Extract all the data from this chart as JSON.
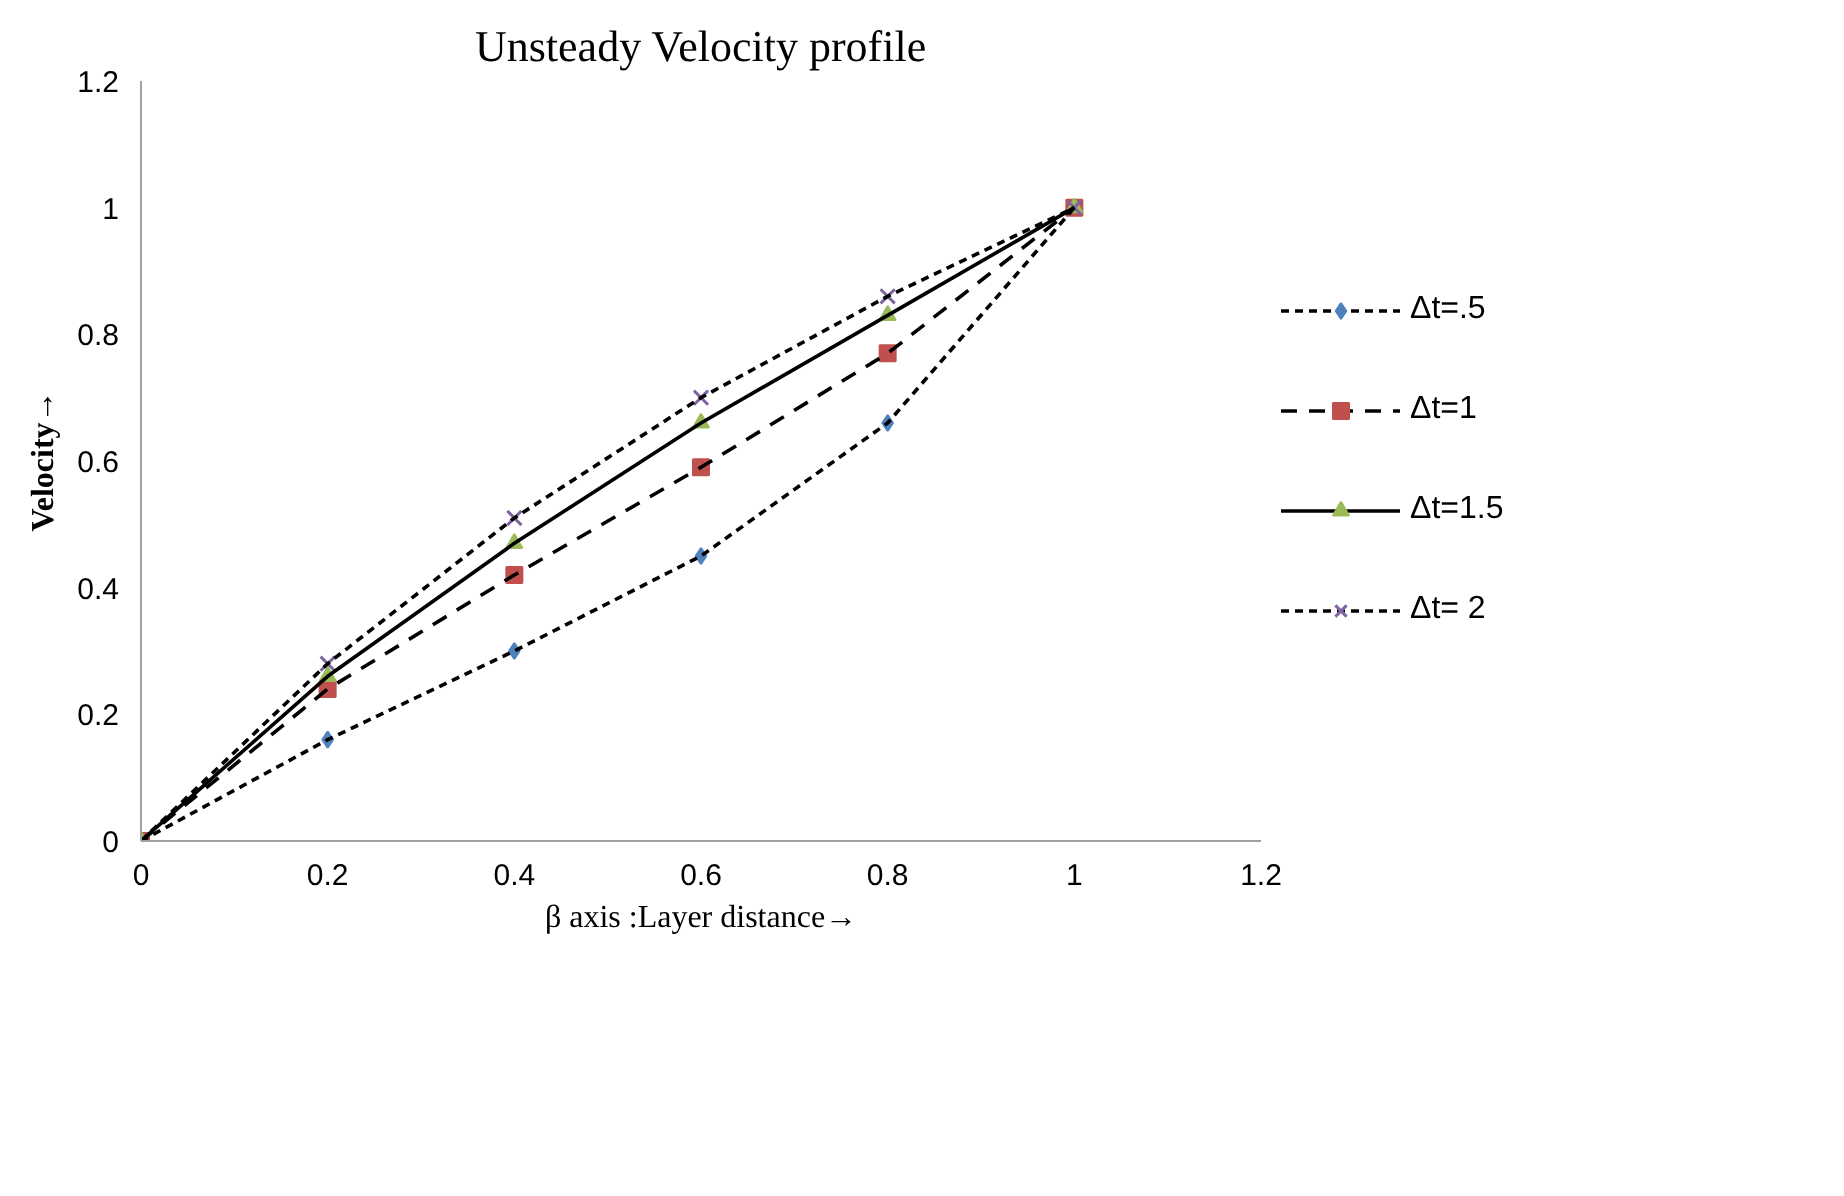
{
  "chart_data": {
    "type": "line",
    "title": "Unsteady Velocity profile",
    "xlabel": "β axis :Layer distance→",
    "ylabel": "Velocity→",
    "x": [
      0,
      0.2,
      0.4,
      0.6,
      0.8,
      1
    ],
    "series": [
      {
        "name": "Δt=.5",
        "color": "#000000",
        "colors": [
          "#4f81bd",
          "#4f81bd",
          "#4f81bd",
          "#4f81bd",
          "#4f81bd",
          "#4f81bd"
        ],
        "values": [
          0,
          0.16,
          0.3,
          0.45,
          0.66,
          1
        ],
        "marker": "diamond",
        "line_style": "dotted"
      },
      {
        "name": "Δt=1",
        "color": "#000000",
        "colors": [
          "#c0504d",
          "#c0504d",
          "#c0504d",
          "#c0504d",
          "#c0504d",
          "#c0504d"
        ],
        "values": [
          0,
          0.24,
          0.42,
          0.59,
          0.77,
          1
        ],
        "marker": "square",
        "line_style": "dashed"
      },
      {
        "name": "Δt=1.5",
        "color": "#000000",
        "colors": [
          "#9bbb59",
          "#9bbb59",
          "#9bbb59",
          "#9bbb59",
          "#9bbb59",
          "#9bbb59"
        ],
        "values": [
          0,
          0.26,
          0.47,
          0.66,
          0.83,
          1
        ],
        "marker": "triangle",
        "line_style": "solid"
      },
      {
        "name": "Δt= 2",
        "color": "#000000",
        "colors": [
          "#8064a2",
          "#8064a2",
          "#8064a2",
          "#8064a2",
          "#8064a2",
          "#8064a2"
        ],
        "values": [
          0,
          0.28,
          0.51,
          0.7,
          0.86,
          1
        ],
        "marker": "cross",
        "line_style": "dotted"
      }
    ],
    "xlim": [
      0,
      1.2
    ],
    "ylim": [
      0,
      1.2
    ],
    "xticks": [
      0,
      0.2,
      0.4,
      0.6,
      0.8,
      1,
      1.2
    ],
    "yticks": [
      0,
      0.2,
      0.4,
      0.6,
      0.8,
      1,
      1.2
    ],
    "grid": false,
    "legend": "right"
  }
}
